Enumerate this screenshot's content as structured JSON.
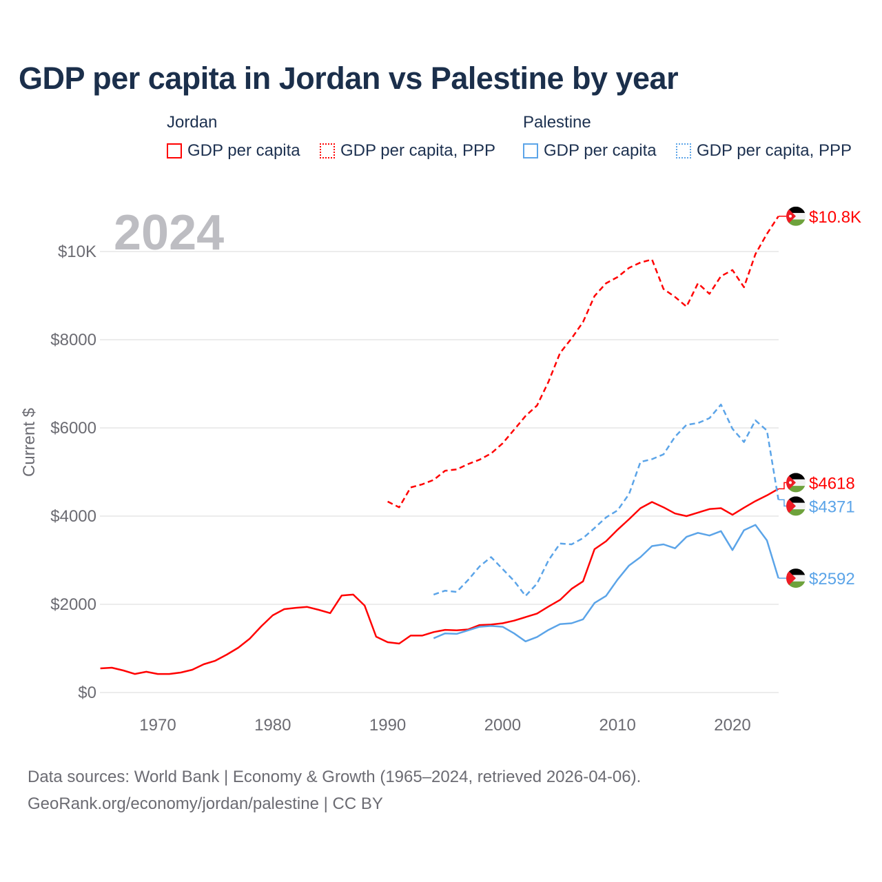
{
  "title": "GDP per capita in Jordan vs Palestine by year",
  "legend": {
    "groups": [
      {
        "name": "Jordan",
        "items": [
          "GDP per capita",
          "GDP per capita, PPP"
        ]
      },
      {
        "name": "Palestine",
        "items": [
          "GDP per capita",
          "GDP per capita, PPP"
        ]
      }
    ]
  },
  "year_watermark": "2024",
  "footer": {
    "line1": "Data sources: World Bank | Economy & Growth (1965–2024, retrieved 2026-04-06).",
    "line2": "GeoRank.org/economy/jordan/palestine | CC BY"
  },
  "colors": {
    "jordan": "#ff0000",
    "palestine": "#5ba4e8",
    "grid": "#e6e6e6",
    "axis_text": "#6b6b72"
  },
  "chart_data": {
    "type": "line",
    "title": "GDP per capita in Jordan vs Palestine by year",
    "xlabel": "",
    "ylabel": "Current $",
    "xlim": [
      1965,
      2024
    ],
    "ylim": [
      0,
      10800
    ],
    "x_ticks": [
      1970,
      1980,
      1990,
      2000,
      2010,
      2020
    ],
    "x_tick_labels": [
      "1970",
      "1980",
      "1990",
      "2000",
      "2010",
      "2020"
    ],
    "y_ticks": [
      0,
      2000,
      4000,
      6000,
      8000,
      10000
    ],
    "y_tick_labels": [
      "$0",
      "$2000",
      "$4000",
      "$6000",
      "$8000",
      "$10K"
    ],
    "grid": true,
    "legend_position": "top",
    "series": [
      {
        "name": "Jordan GDP per capita",
        "country": "Jordan",
        "style": "solid",
        "color": "#ff0000",
        "end_label": "$4618",
        "start_year": 1965,
        "values": [
          547,
          562,
          500,
          420,
          470,
          420,
          420,
          453,
          516,
          640,
          720,
          860,
          1016,
          1220,
          1500,
          1750,
          1890,
          1920,
          1940,
          1875,
          1800,
          2200,
          2220,
          1970,
          1265,
          1140,
          1110,
          1290,
          1290,
          1370,
          1420,
          1410,
          1430,
          1530,
          1540,
          1570,
          1630,
          1710,
          1790,
          1950,
          2100,
          2350,
          2520,
          3250,
          3430,
          3690,
          3930,
          4180,
          4320,
          4200,
          4060,
          4000,
          4080,
          4160,
          4180,
          4030,
          4190,
          4340,
          4470,
          4618
        ]
      },
      {
        "name": "Jordan GDP per capita, PPP",
        "country": "Jordan",
        "style": "dashed",
        "color": "#ff0000",
        "end_label": "$10.8K",
        "start_year": 1990,
        "values": [
          4330,
          4200,
          4650,
          4720,
          4820,
          5030,
          5060,
          5180,
          5280,
          5420,
          5650,
          5960,
          6270,
          6510,
          7050,
          7700,
          8030,
          8400,
          8990,
          9280,
          9420,
          9630,
          9750,
          9820,
          9150,
          8970,
          8750,
          9280,
          9040,
          9440,
          9580,
          9190,
          9940,
          10400,
          10800
        ]
      },
      {
        "name": "Palestine GDP per capita",
        "country": "Palestine",
        "style": "solid",
        "color": "#5ba4e8",
        "end_label": "$2592",
        "start_year": 1994,
        "values": [
          1230,
          1340,
          1330,
          1410,
          1490,
          1510,
          1490,
          1340,
          1160,
          1260,
          1420,
          1550,
          1570,
          1660,
          2030,
          2190,
          2560,
          2880,
          3070,
          3320,
          3360,
          3270,
          3530,
          3620,
          3560,
          3660,
          3230,
          3680,
          3800,
          3450,
          2592
        ]
      },
      {
        "name": "Palestine GDP per capita, PPP",
        "country": "Palestine",
        "style": "dashed",
        "color": "#5ba4e8",
        "end_label": "$4371",
        "start_year": 1994,
        "values": [
          2220,
          2310,
          2280,
          2550,
          2860,
          3070,
          2800,
          2530,
          2190,
          2470,
          3000,
          3380,
          3360,
          3500,
          3730,
          3970,
          4130,
          4500,
          5230,
          5290,
          5400,
          5800,
          6070,
          6110,
          6220,
          6530,
          5980,
          5680,
          6170,
          5940,
          4371
        ]
      }
    ]
  }
}
